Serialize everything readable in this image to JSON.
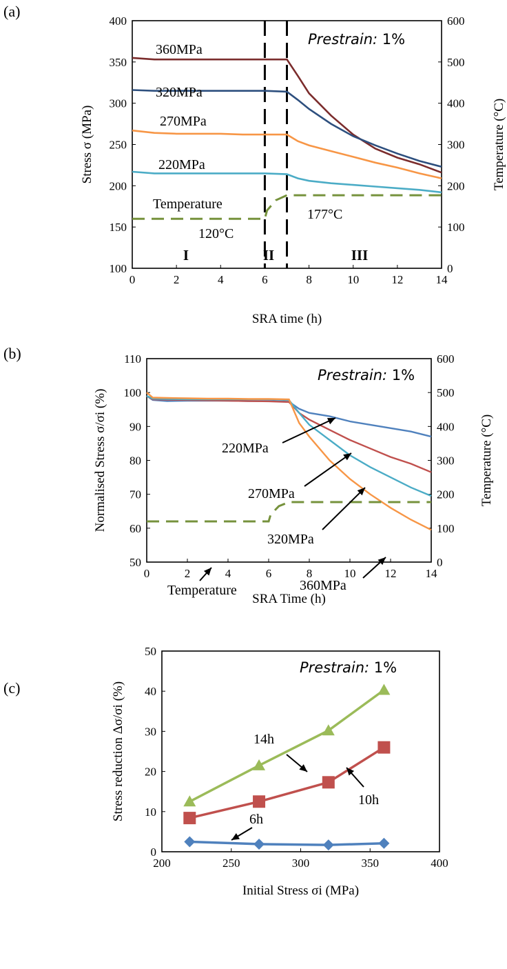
{
  "chart_data": [
    {
      "panel": "(a)",
      "type": "line",
      "annotation": "Prestrain: 1%",
      "xlabel": "SRA time (h)",
      "ylabel": "Stress σ (MPa)",
      "ylabel_right": "Temperature (°C)",
      "xlim": [
        0,
        14
      ],
      "ylim": [
        100,
        400
      ],
      "ylim_right": [
        0,
        600
      ],
      "xticks": [
        0,
        2,
        4,
        6,
        8,
        10,
        12,
        14
      ],
      "yticks": [
        100,
        150,
        200,
        250,
        300,
        350,
        400
      ],
      "yticks_right": [
        0,
        100,
        200,
        300,
        400,
        500,
        600
      ],
      "grid": false,
      "series": [
        {
          "name": "360MPa",
          "color": "#7b2c2c",
          "x": [
            0,
            1,
            2,
            3,
            4,
            5,
            6,
            7,
            7.5,
            8,
            9,
            10,
            11,
            12,
            13,
            14
          ],
          "y": [
            355,
            353,
            353,
            353,
            353,
            353,
            353,
            353,
            333,
            312,
            285,
            262,
            245,
            234,
            226,
            216
          ]
        },
        {
          "name": "320MPa",
          "color": "#2d4f7e",
          "x": [
            0,
            1,
            2,
            3,
            4,
            5,
            6,
            7,
            7.5,
            8,
            9,
            10,
            11,
            12,
            13,
            14
          ],
          "y": [
            316,
            315,
            315,
            315,
            315,
            315,
            315,
            314,
            304,
            293,
            275,
            260,
            249,
            239,
            230,
            223
          ]
        },
        {
          "name": "270MPa",
          "color": "#f79646",
          "x": [
            0,
            1,
            2,
            3,
            4,
            5,
            6,
            7,
            7.5,
            8,
            9,
            10,
            11,
            12,
            13,
            14
          ],
          "y": [
            267,
            264,
            263,
            263,
            263,
            262,
            262,
            262,
            254,
            249,
            242,
            235,
            228,
            222,
            215,
            209
          ]
        },
        {
          "name": "220MPa",
          "color": "#4bacc6",
          "x": [
            0,
            1,
            2,
            3,
            4,
            5,
            6,
            7,
            7.5,
            8,
            9,
            10,
            11,
            12,
            13,
            14
          ],
          "y": [
            217,
            215,
            215,
            215,
            215,
            215,
            215,
            214,
            209,
            206,
            203,
            201,
            199,
            197,
            195,
            192
          ]
        },
        {
          "name": "Temperature",
          "axis": "right",
          "dash": true,
          "color": "#76923c",
          "x": [
            0,
            6,
            6.1,
            6.5,
            7,
            14
          ],
          "y": [
            120,
            120,
            140,
            165,
            177,
            177
          ]
        }
      ],
      "text": [
        {
          "label": "360MPa"
        },
        {
          "label": "320MPa"
        },
        {
          "label": "270MPa"
        },
        {
          "label": "220MPa"
        },
        {
          "label": "Temperature"
        },
        {
          "label": "120°C"
        },
        {
          "label": "177°C"
        },
        {
          "label": "I"
        },
        {
          "label": "II"
        },
        {
          "label": "III"
        }
      ]
    },
    {
      "panel": "(b)",
      "type": "line",
      "annotation": "Prestrain: 1%",
      "xlabel": "SRA Time (h)",
      "ylabel": "Normalised Stress σ/σi (%)",
      "ylabel_right": "Temperature (°C)",
      "xlim": [
        0,
        14
      ],
      "ylim": [
        50,
        110
      ],
      "ylim_right": [
        0,
        600
      ],
      "xticks": [
        0,
        2,
        4,
        6,
        8,
        10,
        12,
        14
      ],
      "yticks": [
        50,
        60,
        70,
        80,
        90,
        100,
        110
      ],
      "yticks_right": [
        0,
        100,
        200,
        300,
        400,
        500,
        600
      ],
      "grid": false,
      "series": [
        {
          "name": "220MPa",
          "color": "#4f81bd",
          "x": [
            0,
            0.3,
            1,
            2,
            3,
            4,
            5,
            6,
            7,
            7.5,
            8,
            9,
            10,
            11,
            12,
            13,
            14
          ],
          "y": [
            99,
            97.8,
            97.5,
            97.6,
            97.6,
            97.6,
            97.5,
            97.5,
            97.3,
            95.2,
            94,
            93,
            91.5,
            90.5,
            89.5,
            88.5,
            87
          ]
        },
        {
          "name": "270MPa",
          "color": "#c0504d",
          "x": [
            0,
            0.3,
            1,
            2,
            3,
            4,
            5,
            6,
            7,
            7.5,
            8,
            9,
            10,
            11,
            12,
            13,
            14
          ],
          "y": [
            99,
            98,
            97.9,
            97.8,
            97.7,
            97.6,
            97.5,
            97.4,
            97.2,
            94,
            92,
            89,
            86,
            83.5,
            81,
            79,
            76.5
          ]
        },
        {
          "name": "320MPa",
          "color": "#4bacc6",
          "x": [
            0,
            0.3,
            1,
            2,
            3,
            4,
            5,
            6,
            7,
            7.5,
            8,
            9,
            10,
            11,
            12,
            13,
            14
          ],
          "y": [
            99,
            98.2,
            98.1,
            98,
            98,
            98,
            98,
            98,
            97.8,
            94,
            90.5,
            86,
            81.5,
            78,
            75,
            72,
            69.5
          ]
        },
        {
          "name": "360MPa",
          "color": "#f79646",
          "x": [
            0,
            0.3,
            1,
            2,
            3,
            4,
            5,
            6,
            7,
            7.5,
            8,
            9,
            10,
            11,
            12,
            13,
            14
          ],
          "y": [
            100,
            98.5,
            98.4,
            98.3,
            98.2,
            98.2,
            98.1,
            98.1,
            98,
            91,
            87,
            80,
            74.5,
            70,
            66,
            62.5,
            59.5
          ]
        },
        {
          "name": "Temperature",
          "axis": "right",
          "dash": true,
          "color": "#76923c",
          "x": [
            0,
            6,
            6.1,
            6.5,
            7,
            14
          ],
          "y": [
            120,
            120,
            140,
            165,
            177,
            177
          ]
        }
      ],
      "text": [
        {
          "label": "220MPa"
        },
        {
          "label": "270MPa"
        },
        {
          "label": "320MPa"
        },
        {
          "label": "360MPa"
        },
        {
          "label": "Temperature"
        }
      ]
    },
    {
      "panel": "(c)",
      "type": "line",
      "annotation": "Prestrain: 1%",
      "xlabel": "Initial Stress σi (MPa)",
      "ylabel": "Stress reduction Δσ/σi (%)",
      "xlim": [
        200,
        400
      ],
      "ylim": [
        0,
        50
      ],
      "xticks": [
        200,
        250,
        300,
        350,
        400
      ],
      "yticks": [
        0,
        10,
        20,
        30,
        40,
        50
      ],
      "grid": false,
      "categories": [
        220,
        270,
        320,
        360
      ],
      "series": [
        {
          "name": "14h",
          "color": "#9bbb59",
          "marker": "triangle",
          "values": [
            12.5,
            21.5,
            30.2,
            40.3
          ]
        },
        {
          "name": "10h",
          "color": "#c0504d",
          "marker": "square",
          "values": [
            8.4,
            12.5,
            17.3,
            26
          ]
        },
        {
          "name": "6h",
          "color": "#4f81bd",
          "marker": "diamond",
          "values": [
            2.5,
            1.9,
            1.7,
            2.1
          ]
        }
      ]
    }
  ]
}
